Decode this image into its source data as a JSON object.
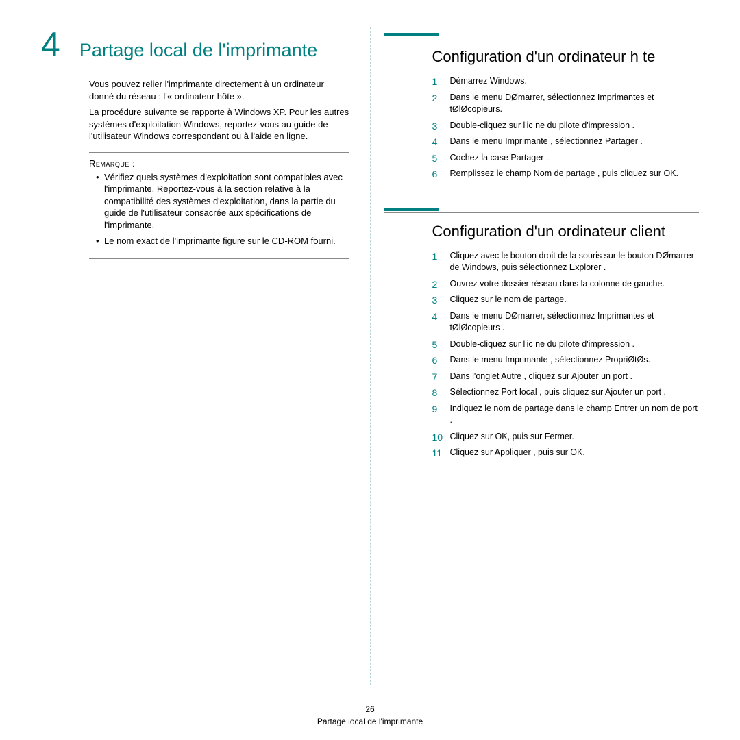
{
  "chapter": {
    "number": "4",
    "title": "Partage local de l'imprimante"
  },
  "intro": {
    "p1": "Vous pouvez relier l'imprimante directement à un ordinateur donné du réseau : l'« ordinateur hôte ».",
    "p2": "La procédure suivante se rapporte à Windows XP. Pour les autres systèmes d'exploitation Windows, reportez-vous au guide de l'utilisateur Windows correspondant ou à l'aide en ligne."
  },
  "note": {
    "label": "Remarque :",
    "items": [
      "Vérifiez quels systèmes d'exploitation sont compatibles avec l'imprimante. Reportez-vous à la section relative à la compatibilité des systèmes d'exploitation, dans la partie du guide de l'utilisateur consacrée aux spécifications de l'imprimante.",
      "Le nom exact de l'imprimante figure sur le CD-ROM fourni."
    ]
  },
  "sectionA": {
    "title": "Configuration d'un ordinateur h te",
    "steps": [
      "Démarrez Windows.",
      "Dans le menu DØmarrer, sélectionnez Imprimantes et tØlØcopieurs.",
      "Double-cliquez sur l'ic ne du pilote d'impression    .",
      "Dans le menu Imprimante , sélectionnez Partager .",
      "Cochez la case Partager .",
      "Remplissez le champ Nom de partage , puis cliquez sur OK."
    ]
  },
  "sectionB": {
    "title": "Configuration d'un ordinateur client",
    "steps": [
      "Cliquez avec le bouton droit de la souris sur le bouton DØmarrer de Windows, puis sélectionnez Explorer .",
      "Ouvrez votre dossier réseau dans la colonne de gauche.",
      "Cliquez sur le nom de partage.",
      "Dans le menu DØmarrer, sélectionnez Imprimantes et tØlØcopieurs  .",
      "Double-cliquez sur l'ic ne du pilote d'impression     .",
      "Dans le menu Imprimante , sélectionnez PropriØtØs.",
      "Dans l'onglet Autre , cliquez sur Ajouter un port  .",
      "Sélectionnez Port local , puis cliquez sur Ajouter un port  .",
      "Indiquez le nom de partage dans le champ Entrer un nom de port  .",
      "Cliquez sur OK, puis sur Fermer.",
      "Cliquez sur Appliquer , puis sur OK."
    ]
  },
  "footer": {
    "page": "26",
    "label": "Partage local de l'imprimante"
  },
  "colors": {
    "accent": "#008080",
    "text": "#000000",
    "rule": "#888888",
    "divider": "#b9d6d6",
    "background": "#ffffff"
  },
  "typography": {
    "chapter_num_size": 50,
    "chapter_title_size": 27,
    "section_title_size": 22,
    "body_size": 13,
    "step_size": 12.5
  }
}
